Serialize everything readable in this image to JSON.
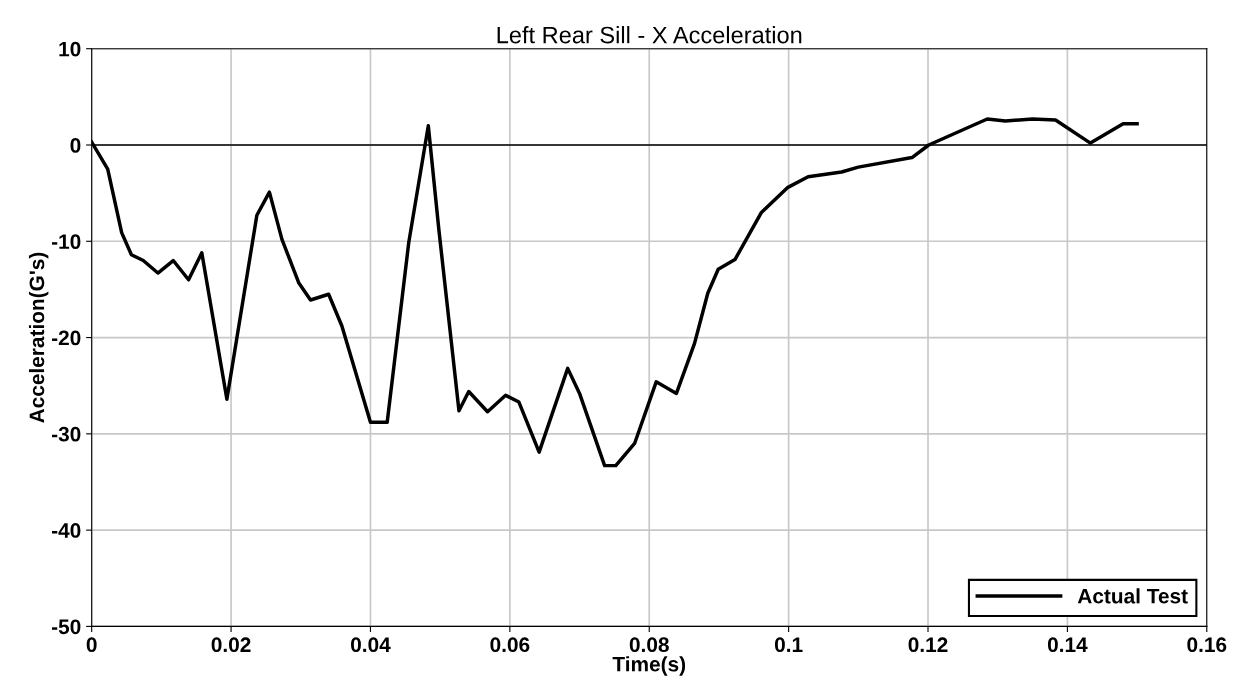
{
  "chart_data": {
    "type": "line",
    "title": "Left Rear Sill - X Acceleration",
    "xlabel": "Time(s)",
    "ylabel": "Acceleration(G's)",
    "xlim": [
      0,
      0.16
    ],
    "xticks": [
      0,
      0.02,
      0.04,
      0.06,
      0.08,
      0.1,
      0.12,
      0.14,
      0.16
    ],
    "ylim": [
      -50,
      10
    ],
    "yticks": [
      -50,
      -40,
      -30,
      -20,
      -10,
      0,
      10
    ],
    "grid": true,
    "legend": "bottom right",
    "marker": "none",
    "line_style": "solid",
    "ref_lines": [
      {
        "axis": "y",
        "value": 0,
        "color": "#000000"
      }
    ],
    "series": [
      {
        "name": "Actual Test",
        "color": "#000000",
        "x": [
          0.0,
          0.0023,
          0.0043,
          0.0057,
          0.0074,
          0.0095,
          0.0117,
          0.0139,
          0.0158,
          0.0194,
          0.0237,
          0.0255,
          0.0273,
          0.0297,
          0.0314,
          0.034,
          0.0359,
          0.04,
          0.0424,
          0.0455,
          0.0483,
          0.0498,
          0.0527,
          0.0541,
          0.0568,
          0.0594,
          0.0613,
          0.0642,
          0.0683,
          0.07,
          0.0736,
          0.0752,
          0.0779,
          0.081,
          0.0839,
          0.0865,
          0.0884,
          0.0899,
          0.0923,
          0.0961,
          0.0999,
          0.1028,
          0.1076,
          0.11,
          0.1177,
          0.1201,
          0.1285,
          0.1311,
          0.135,
          0.1383,
          0.1433,
          0.148,
          0.15
        ],
        "values": [
          0.3,
          -2.5,
          -9.1,
          -11.4,
          -12.0,
          -13.3,
          -12.0,
          -14.0,
          -11.2,
          -26.4,
          -7.3,
          -4.9,
          -9.8,
          -14.3,
          -16.1,
          -15.5,
          -18.8,
          -28.8,
          -28.8,
          -10.1,
          2.0,
          -8.7,
          -27.6,
          -25.6,
          -27.7,
          -26.0,
          -26.7,
          -31.9,
          -23.2,
          -25.8,
          -33.3,
          -33.3,
          -31.0,
          -24.6,
          -25.8,
          -20.6,
          -15.4,
          -12.9,
          -11.9,
          -7.0,
          -4.4,
          -3.3,
          -2.8,
          -2.3,
          -1.3,
          0.0,
          2.7,
          2.5,
          2.7,
          2.6,
          0.2,
          2.2,
          2.2
        ]
      }
    ]
  }
}
